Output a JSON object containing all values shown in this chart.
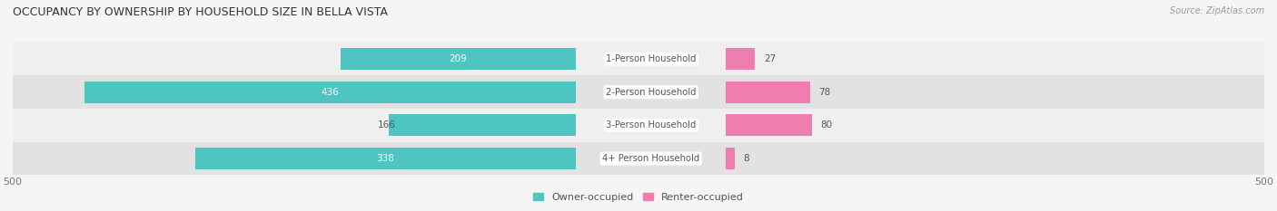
{
  "title": "OCCUPANCY BY OWNERSHIP BY HOUSEHOLD SIZE IN BELLA VISTA",
  "source": "Source: ZipAtlas.com",
  "categories": [
    "1-Person Household",
    "2-Person Household",
    "3-Person Household",
    "4+ Person Household"
  ],
  "owner_values": [
    209,
    436,
    166,
    338
  ],
  "renter_values": [
    27,
    78,
    80,
    8
  ],
  "owner_color": "#4EC5C1",
  "renter_color": "#F07DB0",
  "row_bg_colors_owner": [
    "#EFEFEF",
    "#E2E2E2",
    "#EFEFEF",
    "#E2E2E2"
  ],
  "row_bg_colors_renter": [
    "#EFEFEF",
    "#E2E2E2",
    "#EFEFEF",
    "#E2E2E2"
  ],
  "x_max": 500,
  "label_color_inside": "#FFFFFF",
  "label_color_outside": "#555555",
  "axis_label_color": "#777777",
  "title_color": "#333333",
  "category_label_color": "#555555",
  "legend_owner": "Owner-occupied",
  "legend_renter": "Renter-occupied",
  "fig_bg": "#F5F5F5",
  "figsize": [
    14.06,
    2.33
  ],
  "dpi": 100
}
